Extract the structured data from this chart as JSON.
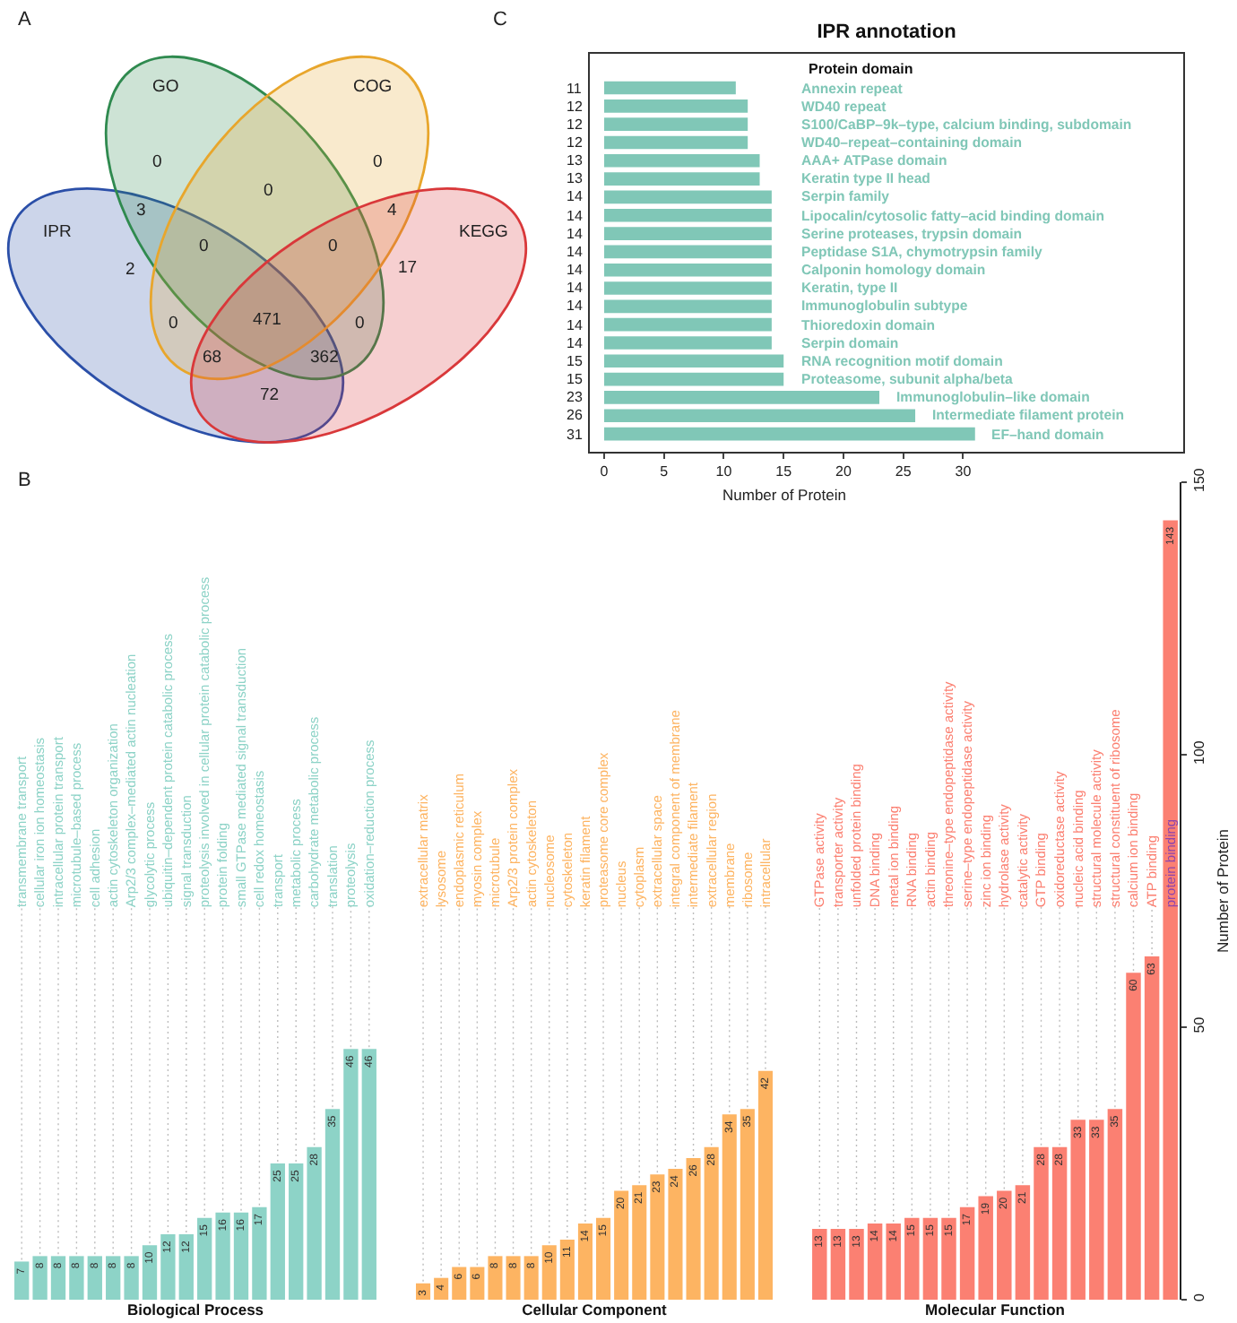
{
  "chart_data": [
    {
      "type": "other",
      "annotations": [
        "A",
        "IPR",
        "GO",
        "COG",
        "KEGG",
        "0",
        "0",
        "0",
        "3",
        "4",
        "2",
        "17",
        "0",
        "0",
        "471",
        "0",
        "0",
        "68",
        "362",
        "72"
      ]
    },
    {
      "type": "bar",
      "orientation": "horizontal",
      "title": "IPR annotation",
      "annotations": [
        "C"
      ],
      "ylabel": "Protein domain",
      "xlabel": "Number of Protein",
      "categories": [
        "Annexin repeat",
        "WD40 repeat",
        "S100/CaBP–9k–type, calcium binding, subdomain",
        "WD40–repeat–containing domain",
        "AAA+ ATPase domain",
        "Keratin type II head",
        "Serpin family",
        "Lipocalin/cytosolic fatty–acid binding domain",
        "Serine proteases, trypsin domain",
        "Peptidase S1A, chymotrypsin family",
        "Calponin homology domain",
        "Keratin, type II",
        "Immunoglobulin subtype",
        "Thioredoxin domain",
        "Serpin domain",
        "RNA recognition motif domain",
        "Proteasome, subunit alpha/beta",
        "Immunoglobulin–like domain",
        "Intermediate filament protein",
        "EF–hand domain"
      ],
      "values": [
        11,
        12,
        12,
        12,
        13,
        13,
        14,
        14,
        14,
        14,
        14,
        14,
        14,
        14,
        14,
        15,
        15,
        23,
        26,
        31
      ],
      "color": "#80c7b7",
      "xlim": [
        -1.2,
        48.4
      ],
      "xticks": [
        0,
        5,
        10,
        15,
        20,
        25,
        30
      ],
      "data_labels": true
    },
    {
      "type": "bar",
      "annotations": [
        "B"
      ],
      "xlabel": "Biological Process",
      "categories": [
        "transmembrane transport",
        "cellular iron ion homeostasis",
        "intracellular protein transport",
        "microtubule–based process",
        "cell adhesion",
        "actin cytoskeleton organization",
        "Arp2/3 complex–mediated actin nucleation",
        "glycolytic process",
        "ubiquitin–dependent protein catabolic process",
        "signal transduction",
        "proteolysis involved in cellular protein catabolic process",
        "protein folding",
        "small GTPase mediated signal transduction",
        "cell redox homeostasis",
        "transport",
        "metabolic process",
        "carbohydrate metabolic process",
        "translation",
        "proteolysis",
        "oxidation–reduction process"
      ],
      "values": [
        7,
        8,
        8,
        8,
        8,
        8,
        8,
        10,
        12,
        12,
        15,
        16,
        16,
        17,
        25,
        25,
        28,
        35,
        46,
        46
      ],
      "color": "#8dd3c7",
      "ylim": [
        0,
        150
      ],
      "data_labels": true,
      "tick_labels": "x"
    },
    {
      "type": "bar",
      "xlabel": "Cellular Component",
      "categories": [
        "extracellular matrix",
        "lysosome",
        "endoplasmic reticulum",
        "myosin complex",
        "microtubule",
        "Arp2/3 protein complex",
        "actin cytoskeleton",
        "nucleosome",
        "cytoskeleton",
        "keratin filament",
        "proteasome core complex",
        "nucleus",
        "cytoplasm",
        "extracellular space",
        "integral component of membrane",
        "intermediate filament",
        "extracellular region",
        "membrane",
        "ribosome",
        "intracellular"
      ],
      "values": [
        3,
        4,
        6,
        6,
        8,
        8,
        8,
        10,
        11,
        14,
        15,
        20,
        21,
        23,
        24,
        26,
        28,
        34,
        35,
        42
      ],
      "color": "#fdb462",
      "ylim": [
        0,
        150
      ],
      "data_labels": true,
      "tick_labels": "x"
    },
    {
      "type": "bar",
      "xlabel": "Molecular Function",
      "ylabel": "Number of Protein",
      "categories": [
        "GTPase activity",
        "transporter activity",
        "unfolded protein binding",
        "DNA binding",
        "metal ion binding",
        "RNA binding",
        "actin binding",
        "threonine–type endopeptidase activity",
        "serine–type endopeptidase activity",
        "zinc ion binding",
        "hydrolase activity",
        "catalytic activity",
        "GTP binding",
        "oxidoreductase activity",
        "nucleic acid binding",
        "structural molecule activity",
        "structural constituent of ribosome",
        "calcium ion binding",
        "ATP binding",
        "protein binding"
      ],
      "values": [
        13,
        13,
        13,
        14,
        14,
        15,
        15,
        15,
        17,
        19,
        20,
        21,
        28,
        28,
        33,
        33,
        35,
        60,
        63,
        143
      ],
      "color": "#fb8072",
      "ylim": [
        0,
        150
      ],
      "yticks": [
        0,
        50,
        100,
        150
      ],
      "data_labels": true
    }
  ]
}
